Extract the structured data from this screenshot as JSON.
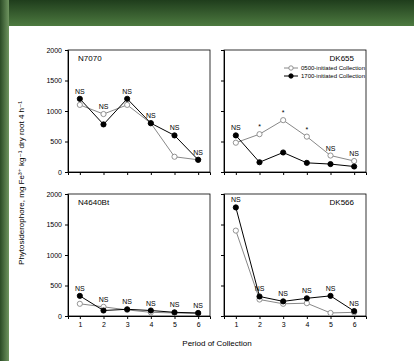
{
  "chart_data": [
    {
      "type": "line",
      "title": "N7070",
      "ylabel": "Phytosiderophore, mg Fe³⁺ kg⁻¹ dry root 4 h⁻¹",
      "xlabel": "Period of Collection",
      "x": [
        1,
        2,
        3,
        4,
        5,
        6
      ],
      "series": [
        {
          "color": "#888888",
          "marker": "open-circle",
          "values": [
            1100,
            950,
            1100,
            800,
            250,
            200
          ]
        },
        {
          "color": "#000000",
          "marker": "circle",
          "values": [
            1200,
            780,
            1200,
            800,
            600,
            200
          ]
        }
      ],
      "annotations": [
        {
          "x": 1,
          "text": "NS"
        },
        {
          "x": 2,
          "text": "NS"
        },
        {
          "x": 3,
          "text": "NS"
        },
        {
          "x": 4,
          "text": "NS"
        },
        {
          "x": 5,
          "text": "NS"
        },
        {
          "x": 6,
          "text": "NS"
        }
      ],
      "xlim": [
        0.5,
        6.5
      ],
      "xticks": [
        1,
        2,
        3,
        4,
        5,
        6
      ],
      "ylim": [
        0,
        2000
      ],
      "yticks": [
        0,
        500,
        1000,
        1500,
        2000
      ],
      "tick_labels": "y"
    },
    {
      "type": "line",
      "title": "DK655",
      "x": [
        1,
        2,
        3,
        4,
        5,
        6
      ],
      "series": [
        {
          "name": "0500-initiated Collection",
          "color": "#888888",
          "marker": "open-circle",
          "values": [
            480,
            620,
            850,
            580,
            270,
            180
          ]
        },
        {
          "name": "1700-initiated Collection",
          "color": "#000000",
          "marker": "circle",
          "values": [
            600,
            160,
            320,
            150,
            130,
            90
          ]
        }
      ],
      "annotations": [
        {
          "x": 1,
          "text": "NS"
        },
        {
          "x": 2,
          "text": "*"
        },
        {
          "x": 3,
          "text": "*"
        },
        {
          "x": 4,
          "text": "*"
        },
        {
          "x": 5,
          "text": "NS"
        },
        {
          "x": 6,
          "text": "NS"
        }
      ],
      "xlim": [
        0.5,
        6.5
      ],
      "xticks": [
        1,
        2,
        3,
        4,
        5,
        6
      ],
      "ylim": [
        0,
        2000
      ],
      "yticks": [
        0,
        500,
        1000,
        1500,
        2000
      ],
      "tick_labels": false,
      "legend": "upper right"
    },
    {
      "type": "line",
      "title": "N4640Bt",
      "x": [
        1,
        2,
        3,
        4,
        5,
        6
      ],
      "series": [
        {
          "color": "#888888",
          "marker": "open-circle",
          "values": [
            200,
            150,
            100,
            60,
            50,
            40
          ]
        },
        {
          "color": "#000000",
          "marker": "circle",
          "values": [
            330,
            90,
            110,
            90,
            60,
            50
          ]
        }
      ],
      "annotations": [
        {
          "x": 1,
          "text": "NS"
        },
        {
          "x": 2,
          "text": "NS"
        },
        {
          "x": 3,
          "text": "NS"
        },
        {
          "x": 4,
          "text": "NS"
        },
        {
          "x": 5,
          "text": "NS"
        },
        {
          "x": 6,
          "text": "NS"
        }
      ],
      "xlim": [
        0.5,
        6.5
      ],
      "xticks": [
        1,
        2,
        3,
        4,
        5,
        6
      ],
      "ylim": [
        0,
        2000
      ],
      "yticks": [
        0,
        500,
        1000,
        1500,
        2000
      ],
      "tick_labels": true
    },
    {
      "type": "line",
      "title": "DK566",
      "x": [
        1,
        2,
        3,
        4,
        5,
        6
      ],
      "series": [
        {
          "color": "#888888",
          "marker": "open-circle",
          "values": [
            1400,
            270,
            200,
            210,
            50,
            60
          ]
        },
        {
          "color": "#000000",
          "marker": "circle",
          "values": [
            1780,
            320,
            240,
            290,
            330,
            80
          ]
        }
      ],
      "annotations": [
        {
          "x": 1,
          "text": "NS"
        },
        {
          "x": 2,
          "text": "NS"
        },
        {
          "x": 3,
          "text": "NS"
        },
        {
          "x": 4,
          "text": "NS"
        },
        {
          "x": 5,
          "text": "NS"
        },
        {
          "x": 6,
          "text": "NS"
        }
      ],
      "xlim": [
        0.5,
        6.5
      ],
      "xticks": [
        1,
        2,
        3,
        4,
        5,
        6
      ],
      "ylim": [
        0,
        2000
      ],
      "yticks": [
        0,
        500,
        1000,
        1500,
        2000
      ],
      "tick_labels": "x"
    }
  ]
}
